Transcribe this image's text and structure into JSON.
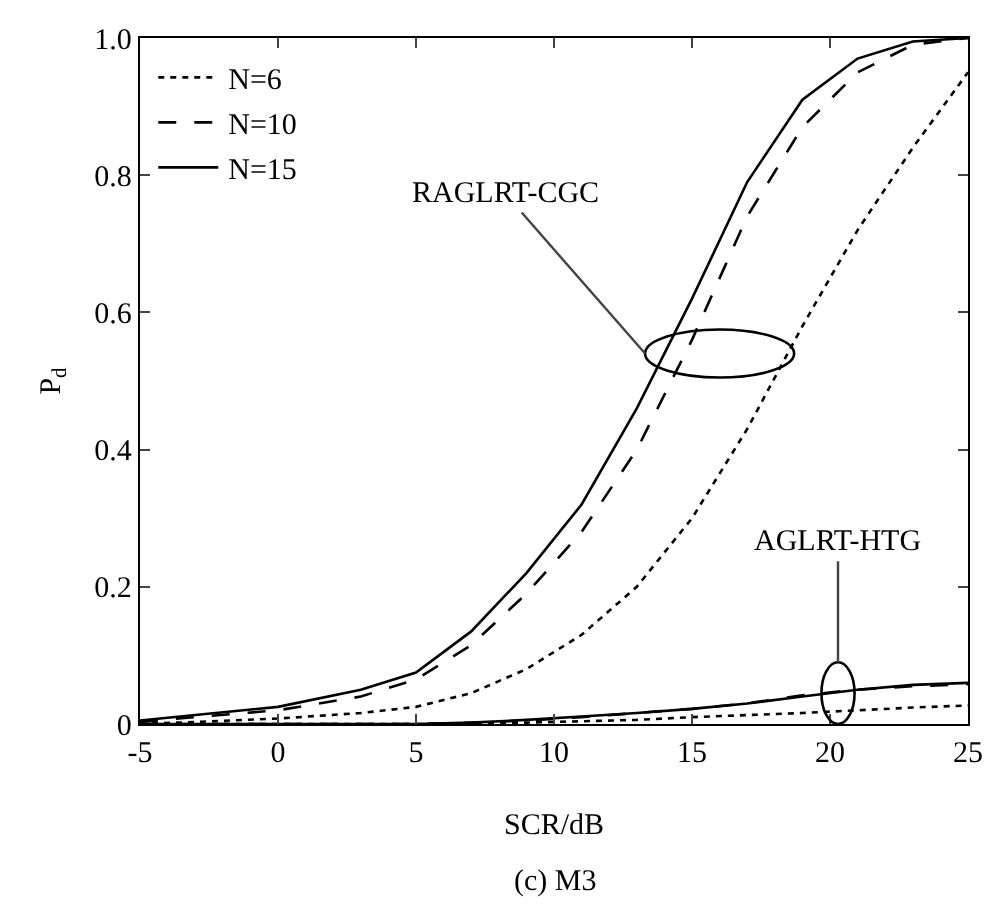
{
  "chart_data": {
    "type": "line",
    "xlabel": "SCR/dB",
    "ylabel": "P$_{d}$",
    "xlim": [
      -5,
      25
    ],
    "xticks": [
      -5,
      0,
      5,
      10,
      15,
      20,
      25
    ],
    "ylim": [
      0,
      1
    ],
    "yticks": [
      0,
      0.2,
      0.4,
      0.6,
      0.8,
      {
        "value": 1,
        "label": "1.0"
      }
    ],
    "grid": false,
    "legend": "top left",
    "marker": "none",
    "x": [
      -5,
      -3,
      0,
      3,
      5,
      7,
      9,
      11,
      13,
      15,
      17,
      19,
      21,
      23,
      25
    ],
    "series": [
      {
        "name": "N=6",
        "color": "#000000",
        "line_style": "dotted",
        "values": [
          0,
          0.003,
          0.008,
          0.016,
          0.025,
          0.045,
          0.08,
          0.13,
          0.2,
          0.3,
          0.43,
          0.58,
          0.72,
          0.84,
          0.95
        ]
      },
      {
        "name": "N=10",
        "color": "#000000",
        "line_style": "dashed",
        "values": [
          0.003,
          0.01,
          0.02,
          0.04,
          0.065,
          0.115,
          0.19,
          0.28,
          0.4,
          0.56,
          0.74,
          0.87,
          0.95,
          0.99,
          1.0
        ]
      },
      {
        "name": "N=15",
        "color": "#000000",
        "line_style": "solid",
        "values": [
          0.005,
          0.013,
          0.025,
          0.05,
          0.075,
          0.135,
          0.22,
          0.32,
          0.46,
          0.62,
          0.79,
          0.91,
          0.97,
          0.995,
          1.0
        ]
      },
      {
        "color": "#000000",
        "line_style": "dotted",
        "values": [
          0,
          0,
          0,
          0,
          0,
          0.001,
          0.002,
          0.004,
          0.006,
          0.01,
          0.013,
          0.016,
          0.02,
          0.024,
          0.027
        ]
      },
      {
        "color": "#000000",
        "line_style": "dashed",
        "values": [
          0,
          0,
          0,
          0,
          0,
          0.002,
          0.005,
          0.01,
          0.016,
          0.022,
          0.03,
          0.042,
          0.05,
          0.055,
          0.058
        ]
      },
      {
        "color": "#000000",
        "line_style": "solid",
        "values": [
          0,
          0,
          0,
          0,
          0,
          0.002,
          0.006,
          0.011,
          0.016,
          0.022,
          0.03,
          0.04,
          0.05,
          0.057,
          0.06
        ]
      }
    ],
    "annotations": [
      "RAGLRT-CGC",
      "AGLRT-HTG",
      "(c) M3"
    ]
  }
}
